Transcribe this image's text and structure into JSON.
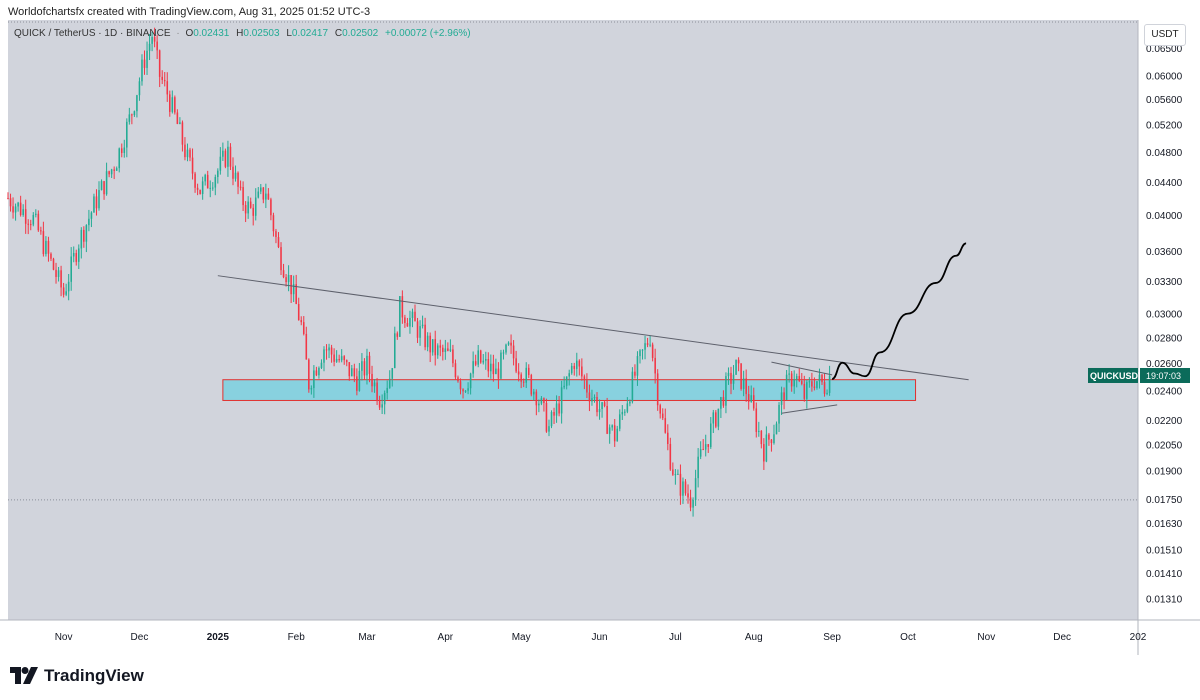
{
  "header": {
    "credit": "Worldofchartsfx created with TradingView.com, Aug 31, 2025 01:52 UTC-3"
  },
  "legend": {
    "symbol": "QUICK / TetherUS · 1D · BINANCE",
    "o_label": "O",
    "o_value": "0.02431",
    "h_label": "H",
    "h_value": "0.02503",
    "l_label": "L",
    "l_value": "0.02417",
    "c_label": "C",
    "c_value": "0.02502",
    "change": "+0.00072 (+2.96%)"
  },
  "currency_button": "USDT",
  "footer": {
    "brand": "TradingView"
  },
  "colors": {
    "up": "#22ab94",
    "down": "#f23645",
    "zone": "#6fd0e0",
    "zone_border": "#e0302e",
    "background": "#d1d4dc",
    "last_price": "#0b6b5a"
  },
  "chart_data": {
    "type": "candlestick",
    "y_scale": "log",
    "ylim": [
      0.0123,
      0.0705
    ],
    "xlim": [
      "2024-10-10",
      "2025-12-31"
    ],
    "y_ticks": [
      "0.06500",
      "0.06000",
      "0.05600",
      "0.05200",
      "0.04800",
      "0.04400",
      "0.04000",
      "0.03600",
      "0.03300",
      "0.03000",
      "0.02800",
      "0.02600",
      "0.02400",
      "0.02200",
      "0.02050",
      "0.01900",
      "0.01750",
      "0.01630",
      "0.01510",
      "0.01410",
      "0.01310"
    ],
    "x_ticks": [
      {
        "label": "Nov",
        "date": "2024-11-01"
      },
      {
        "label": "Dec",
        "date": "2024-12-01"
      },
      {
        "label": "2025",
        "date": "2025-01-01"
      },
      {
        "label": "Feb",
        "date": "2025-02-01"
      },
      {
        "label": "Mar",
        "date": "2025-03-01"
      },
      {
        "label": "Apr",
        "date": "2025-04-01"
      },
      {
        "label": "May",
        "date": "2025-05-01"
      },
      {
        "label": "Jun",
        "date": "2025-06-01"
      },
      {
        "label": "Jul",
        "date": "2025-07-01"
      },
      {
        "label": "Aug",
        "date": "2025-08-01"
      },
      {
        "label": "Sep",
        "date": "2025-09-01"
      },
      {
        "label": "Oct",
        "date": "2025-10-01"
      },
      {
        "label": "Nov",
        "date": "2025-11-01"
      },
      {
        "label": "Dec",
        "date": "2025-12-01"
      },
      {
        "label": "202",
        "date": "2025-12-31"
      }
    ],
    "series": [
      {
        "date": "2024-10-10",
        "close": 0.042
      },
      {
        "date": "2024-10-20",
        "close": 0.0395
      },
      {
        "date": "2024-10-28",
        "close": 0.0342
      },
      {
        "date": "2024-11-01",
        "close": 0.0318
      },
      {
        "date": "2024-11-07",
        "close": 0.037
      },
      {
        "date": "2024-11-15",
        "close": 0.0425
      },
      {
        "date": "2024-11-22",
        "close": 0.047
      },
      {
        "date": "2024-11-28",
        "close": 0.054
      },
      {
        "date": "2024-12-03",
        "close": 0.063
      },
      {
        "date": "2024-12-06",
        "close": 0.0675
      },
      {
        "date": "2024-12-09",
        "close": 0.06
      },
      {
        "date": "2024-12-12",
        "close": 0.057
      },
      {
        "date": "2024-12-16",
        "close": 0.052
      },
      {
        "date": "2024-12-20",
        "close": 0.047
      },
      {
        "date": "2024-12-25",
        "close": 0.043
      },
      {
        "date": "2025-01-01",
        "close": 0.0455
      },
      {
        "date": "2025-01-05",
        "close": 0.048
      },
      {
        "date": "2025-01-10",
        "close": 0.042
      },
      {
        "date": "2025-01-14",
        "close": 0.0405
      },
      {
        "date": "2025-01-20",
        "close": 0.043
      },
      {
        "date": "2025-01-25",
        "close": 0.036
      },
      {
        "date": "2025-01-30",
        "close": 0.0325
      },
      {
        "date": "2025-02-03",
        "close": 0.029
      },
      {
        "date": "2025-02-06",
        "close": 0.0245
      },
      {
        "date": "2025-02-12",
        "close": 0.0272
      },
      {
        "date": "2025-02-18",
        "close": 0.0262
      },
      {
        "date": "2025-02-25",
        "close": 0.0248
      },
      {
        "date": "2025-03-01",
        "close": 0.0258
      },
      {
        "date": "2025-03-06",
        "close": 0.0235
      },
      {
        "date": "2025-03-10",
        "close": 0.025
      },
      {
        "date": "2025-03-14",
        "close": 0.0305
      },
      {
        "date": "2025-03-20",
        "close": 0.029
      },
      {
        "date": "2025-03-27",
        "close": 0.027
      },
      {
        "date": "2025-04-03",
        "close": 0.0265
      },
      {
        "date": "2025-04-08",
        "close": 0.0242
      },
      {
        "date": "2025-04-14",
        "close": 0.0262
      },
      {
        "date": "2025-04-21",
        "close": 0.0252
      },
      {
        "date": "2025-04-26",
        "close": 0.027
      },
      {
        "date": "2025-05-01",
        "close": 0.0255
      },
      {
        "date": "2025-05-07",
        "close": 0.0238
      },
      {
        "date": "2025-05-12",
        "close": 0.0215
      },
      {
        "date": "2025-05-17",
        "close": 0.0235
      },
      {
        "date": "2025-05-22",
        "close": 0.0262
      },
      {
        "date": "2025-05-27",
        "close": 0.0242
      },
      {
        "date": "2025-06-02",
        "close": 0.0225
      },
      {
        "date": "2025-06-07",
        "close": 0.021
      },
      {
        "date": "2025-06-12",
        "close": 0.0235
      },
      {
        "date": "2025-06-17",
        "close": 0.0262
      },
      {
        "date": "2025-06-21",
        "close": 0.0282
      },
      {
        "date": "2025-06-24",
        "close": 0.0238
      },
      {
        "date": "2025-06-27",
        "close": 0.021
      },
      {
        "date": "2025-07-01",
        "close": 0.0185
      },
      {
        "date": "2025-07-04",
        "close": 0.018
      },
      {
        "date": "2025-07-07",
        "close": 0.0175
      },
      {
        "date": "2025-07-11",
        "close": 0.0198
      },
      {
        "date": "2025-07-16",
        "close": 0.0218
      },
      {
        "date": "2025-07-21",
        "close": 0.0242
      },
      {
        "date": "2025-07-25",
        "close": 0.0256
      },
      {
        "date": "2025-07-30",
        "close": 0.0236
      },
      {
        "date": "2025-08-02",
        "close": 0.0218
      },
      {
        "date": "2025-08-05",
        "close": 0.0202
      },
      {
        "date": "2025-08-09",
        "close": 0.0215
      },
      {
        "date": "2025-08-13",
        "close": 0.024
      },
      {
        "date": "2025-08-17",
        "close": 0.0252
      },
      {
        "date": "2025-08-21",
        "close": 0.0236
      },
      {
        "date": "2025-08-25",
        "close": 0.0248
      },
      {
        "date": "2025-08-29",
        "close": 0.0243
      },
      {
        "date": "2025-08-31",
        "close": 0.025
      }
    ],
    "support_zone": {
      "low": 0.0233,
      "high": 0.02475,
      "from": "2025-01-03",
      "to": "2025-10-04"
    },
    "trendline": {
      "from": {
        "date": "2025-01-01",
        "value": 0.0335
      },
      "to": {
        "date": "2025-10-25",
        "value": 0.02475
      }
    },
    "triangle_upper": {
      "from": {
        "date": "2025-08-08",
        "value": 0.02605
      },
      "to": {
        "date": "2025-09-01",
        "value": 0.0251
      }
    },
    "triangle_lower": {
      "from": {
        "date": "2025-08-12",
        "value": 0.02245
      },
      "to": {
        "date": "2025-09-03",
        "value": 0.023
      }
    },
    "projection": [
      {
        "date": "2025-09-01",
        "value": 0.0248
      },
      {
        "date": "2025-09-05",
        "value": 0.026
      },
      {
        "date": "2025-09-10",
        "value": 0.0252
      },
      {
        "date": "2025-09-14",
        "value": 0.025
      },
      {
        "date": "2025-09-20",
        "value": 0.0268
      },
      {
        "date": "2025-10-01",
        "value": 0.03
      },
      {
        "date": "2025-10-12",
        "value": 0.0328
      },
      {
        "date": "2025-10-20",
        "value": 0.0355
      },
      {
        "date": "2025-10-24",
        "value": 0.0368
      }
    ],
    "last_price": {
      "symbol": "QUICKUSDT",
      "countdown": "19:07:03",
      "value": 0.02502
    }
  }
}
